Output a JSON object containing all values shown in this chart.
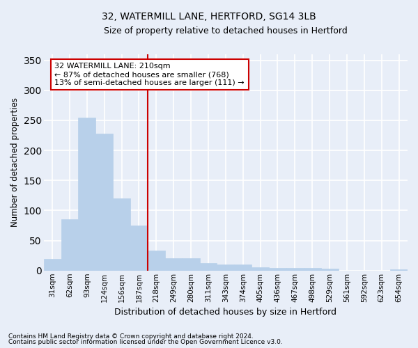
{
  "title1": "32, WATERMILL LANE, HERTFORD, SG14 3LB",
  "title2": "Size of property relative to detached houses in Hertford",
  "xlabel": "Distribution of detached houses by size in Hertford",
  "ylabel": "Number of detached properties",
  "categories": [
    "31sqm",
    "62sqm",
    "93sqm",
    "124sqm",
    "156sqm",
    "187sqm",
    "218sqm",
    "249sqm",
    "280sqm",
    "311sqm",
    "343sqm",
    "374sqm",
    "405sqm",
    "436sqm",
    "467sqm",
    "498sqm",
    "529sqm",
    "561sqm",
    "592sqm",
    "623sqm",
    "654sqm"
  ],
  "values": [
    20,
    86,
    255,
    228,
    120,
    75,
    33,
    21,
    21,
    12,
    10,
    10,
    5,
    4,
    4,
    4,
    3,
    0,
    0,
    0,
    2
  ],
  "bar_color": "#b8d0ea",
  "bar_edge_color": "#b8d0ea",
  "background_color": "#e8eef8",
  "grid_color": "#ffffff",
  "vline_x_idx": 6,
  "vline_color": "#cc0000",
  "annotation_text": "32 WATERMILL LANE: 210sqm\n← 87% of detached houses are smaller (768)\n13% of semi-detached houses are larger (111) →",
  "annotation_box_color": "#ffffff",
  "annotation_box_edge": "#cc0000",
  "ylim": [
    0,
    360
  ],
  "yticks": [
    0,
    50,
    100,
    150,
    200,
    250,
    300,
    350
  ],
  "footer1": "Contains HM Land Registry data © Crown copyright and database right 2024.",
  "footer2": "Contains public sector information licensed under the Open Government Licence v3.0."
}
